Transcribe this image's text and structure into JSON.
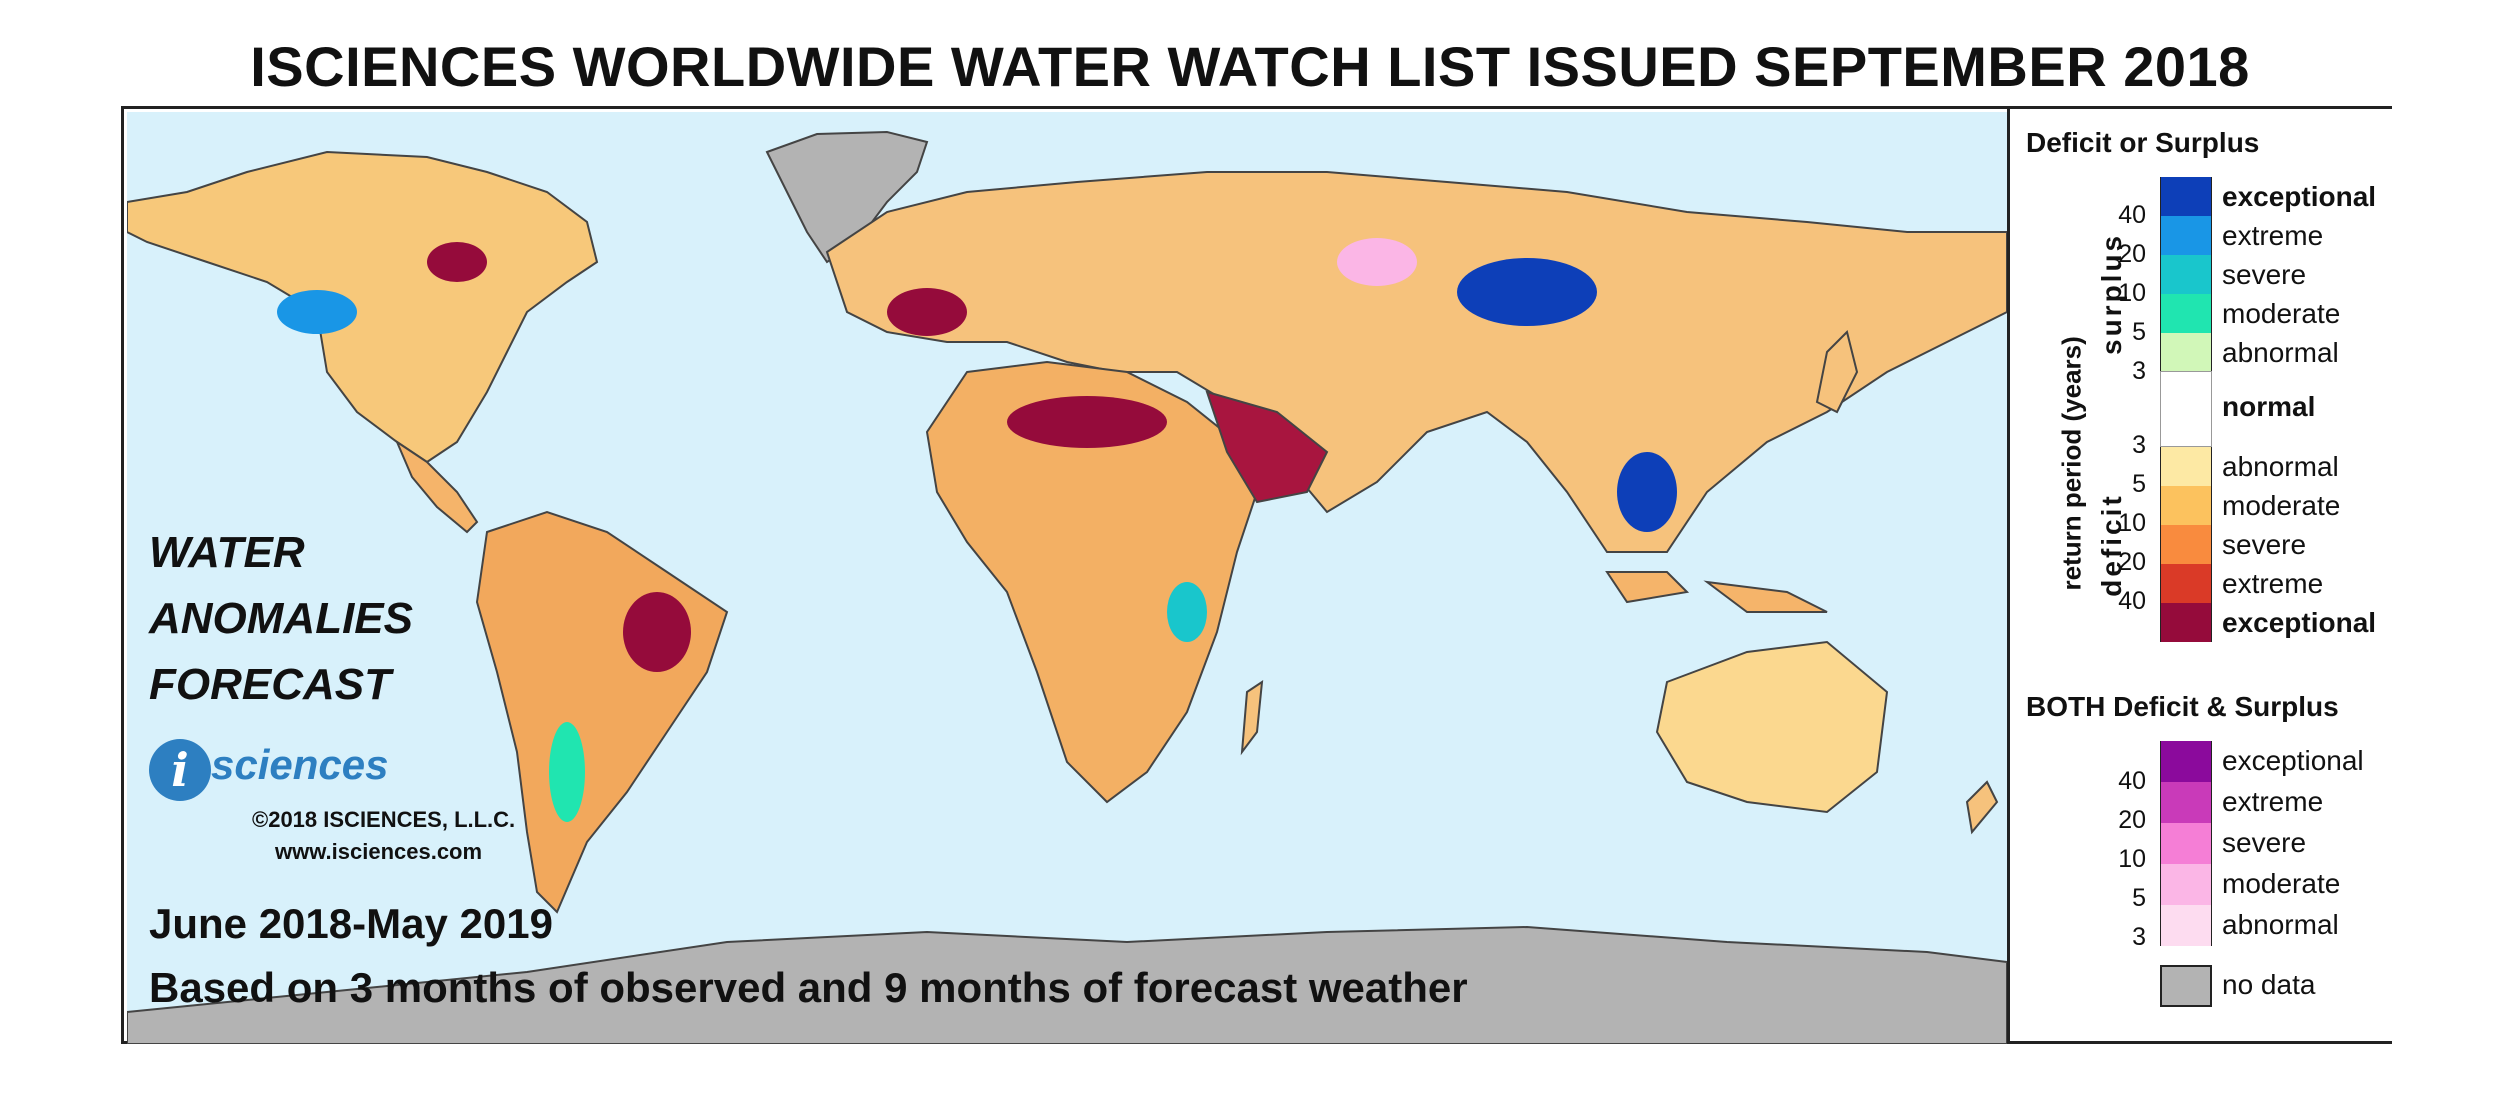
{
  "title": "ISCIENCES WORLDWIDE WATER WATCH LIST ISSUED SEPTEMBER 2018",
  "map": {
    "forecast_label": [
      "WATER",
      "ANOMALIES",
      "FORECAST"
    ],
    "logo_initial": "i",
    "logo_word": "sciences",
    "copyright": "©2018 ISCIENCES, L.L.C.",
    "website": "www.isciences.com",
    "period": "June 2018-May 2019",
    "basis": "Based on 3 months of observed and 9 months of forecast weather",
    "colors": {
      "ocean": "#d8f1fb",
      "no_data_land": "#b3b3b3",
      "coast": "#444444"
    }
  },
  "legend": {
    "heading_1": "Deficit or Surplus",
    "axis_label": "return period (years)",
    "surplus_label": "surplus",
    "deficit_label": "deficit",
    "surplus": [
      {
        "label": "exceptional",
        "color": "#0d3fb8",
        "bold": true
      },
      {
        "label": "extreme",
        "color": "#1996e6",
        "bold": false
      },
      {
        "label": "severe",
        "color": "#19c6cc",
        "bold": false
      },
      {
        "label": "moderate",
        "color": "#20e5b0",
        "bold": false
      },
      {
        "label": "abnormal",
        "color": "#d1f7b8",
        "bold": false
      }
    ],
    "surplus_ticks": [
      "40",
      "20",
      "10",
      "5",
      "3"
    ],
    "normal": {
      "label": "normal",
      "color": "#ffffff"
    },
    "deficit": [
      {
        "label": "abnormal",
        "color": "#fde9a4",
        "bold": false
      },
      {
        "label": "moderate",
        "color": "#fcc25e",
        "bold": false
      },
      {
        "label": "severe",
        "color": "#f98b3e",
        "bold": false
      },
      {
        "label": "extreme",
        "color": "#da3a27",
        "bold": false
      },
      {
        "label": "exceptional",
        "color": "#950b3b",
        "bold": true
      }
    ],
    "deficit_ticks": [
      "3",
      "5",
      "10",
      "20",
      "40"
    ],
    "heading_2": "BOTH Deficit & Surplus",
    "both": [
      {
        "label": "exceptional",
        "color": "#8b0a9c"
      },
      {
        "label": "extreme",
        "color": "#c93ab9"
      },
      {
        "label": "severe",
        "color": "#f57ed6"
      },
      {
        "label": "moderate",
        "color": "#fbb6e6"
      },
      {
        "label": "abnormal",
        "color": "#fddcf0"
      }
    ],
    "both_ticks": [
      "40",
      "20",
      "10",
      "5",
      "3"
    ],
    "no_data": {
      "label": "no data",
      "color": "#b3b3b3"
    }
  }
}
